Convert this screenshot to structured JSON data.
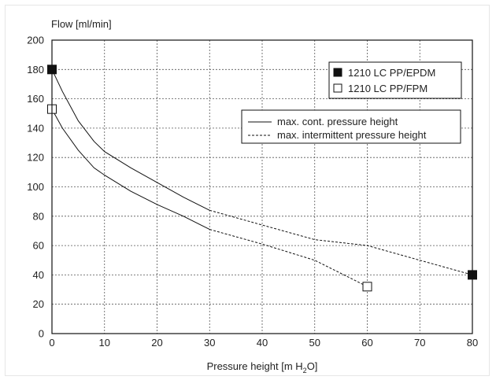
{
  "chart_data": {
    "type": "line",
    "ylabel": "Flow [ml/min]",
    "xlabel_parts": [
      "Pressure height [m H",
      "2",
      "O]"
    ],
    "xlim": [
      0,
      80
    ],
    "ylim": [
      0,
      200
    ],
    "x_ticks": [
      0,
      10,
      20,
      30,
      40,
      50,
      60,
      70,
      80
    ],
    "y_ticks": [
      0,
      20,
      40,
      60,
      80,
      100,
      120,
      140,
      160,
      180,
      200
    ],
    "grid": true,
    "series": [
      {
        "name": "1210 LC PP/EPDM",
        "marker": "filled-square",
        "marker_points": [
          [
            0,
            180
          ],
          [
            80,
            40
          ]
        ],
        "continuous": [
          [
            0,
            180
          ],
          [
            2,
            165
          ],
          [
            5,
            145
          ],
          [
            8,
            131
          ],
          [
            10,
            124
          ],
          [
            15,
            113
          ],
          [
            20,
            103
          ],
          [
            25,
            93
          ],
          [
            30,
            84
          ]
        ],
        "intermittent": [
          [
            30,
            84
          ],
          [
            40,
            74
          ],
          [
            50,
            64
          ],
          [
            60,
            60
          ],
          [
            70,
            50
          ],
          [
            80,
            40
          ]
        ]
      },
      {
        "name": "1210 LC PP/FPM",
        "marker": "open-square",
        "marker_points": [
          [
            0,
            153
          ],
          [
            60,
            32
          ]
        ],
        "continuous": [
          [
            0,
            153
          ],
          [
            2,
            140
          ],
          [
            5,
            125
          ],
          [
            8,
            113
          ],
          [
            10,
            108
          ],
          [
            15,
            97
          ],
          [
            20,
            88
          ],
          [
            25,
            80
          ],
          [
            30,
            71
          ]
        ],
        "intermittent": [
          [
            30,
            71
          ],
          [
            40,
            61
          ],
          [
            50,
            50
          ],
          [
            55,
            41
          ],
          [
            60,
            32
          ]
        ]
      }
    ],
    "legend_markers": [
      {
        "label": "1210 LC PP/EPDM",
        "marker": "filled-square"
      },
      {
        "label": "1210 LC PP/FPM",
        "marker": "open-square"
      }
    ],
    "legend_lines": [
      {
        "label": "max. cont. pressure height",
        "style": "solid"
      },
      {
        "label": "max. intermittent pressure height",
        "style": "dashed"
      }
    ],
    "legend_placement": "top-right"
  }
}
